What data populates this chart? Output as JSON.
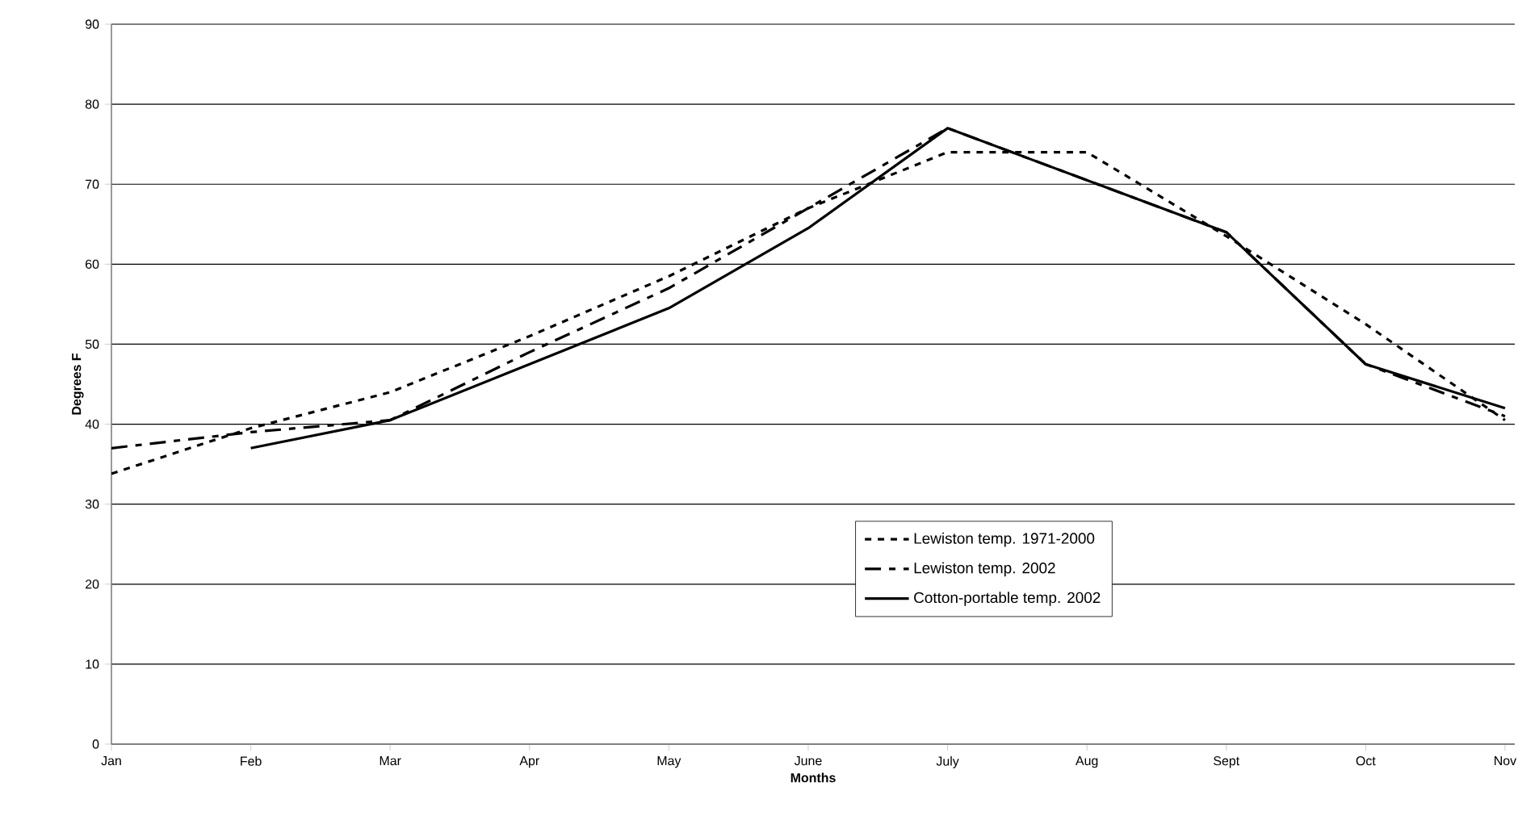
{
  "chart_data": {
    "type": "line",
    "xlabel": "Months",
    "ylabel": "Degrees F",
    "categories": [
      "Jan",
      "Feb",
      "Mar",
      "Apr",
      "May",
      "June",
      "July",
      "Aug",
      "Sept",
      "Oct",
      "Nov"
    ],
    "series": [
      {
        "name": "Lewiston temp. 1971-2000",
        "color": "#000000",
        "line_style": "dotted",
        "values": [
          33.8,
          39.5,
          44,
          51,
          58.5,
          67,
          74,
          74,
          63.5,
          52.5,
          40.5
        ]
      },
      {
        "name": "Lewiston temp. 2002",
        "color": "#000000",
        "line_style": "dashed",
        "values": [
          37,
          39,
          40.5,
          49,
          57,
          67,
          77,
          70.5,
          64,
          47.5,
          41
        ]
      },
      {
        "name": "Cotton-portable temp. 2002",
        "color": "#000000",
        "line_style": "solid",
        "values": [
          null,
          37,
          40.5,
          47.5,
          54.5,
          64.5,
          77,
          70.5,
          64,
          47.5,
          42
        ]
      }
    ],
    "ylim": [
      0,
      90
    ],
    "yticks": [
      0,
      10,
      20,
      30,
      40,
      50,
      60,
      70,
      80,
      90
    ],
    "grid": "y",
    "legend": "bottom right",
    "marker": "none"
  }
}
